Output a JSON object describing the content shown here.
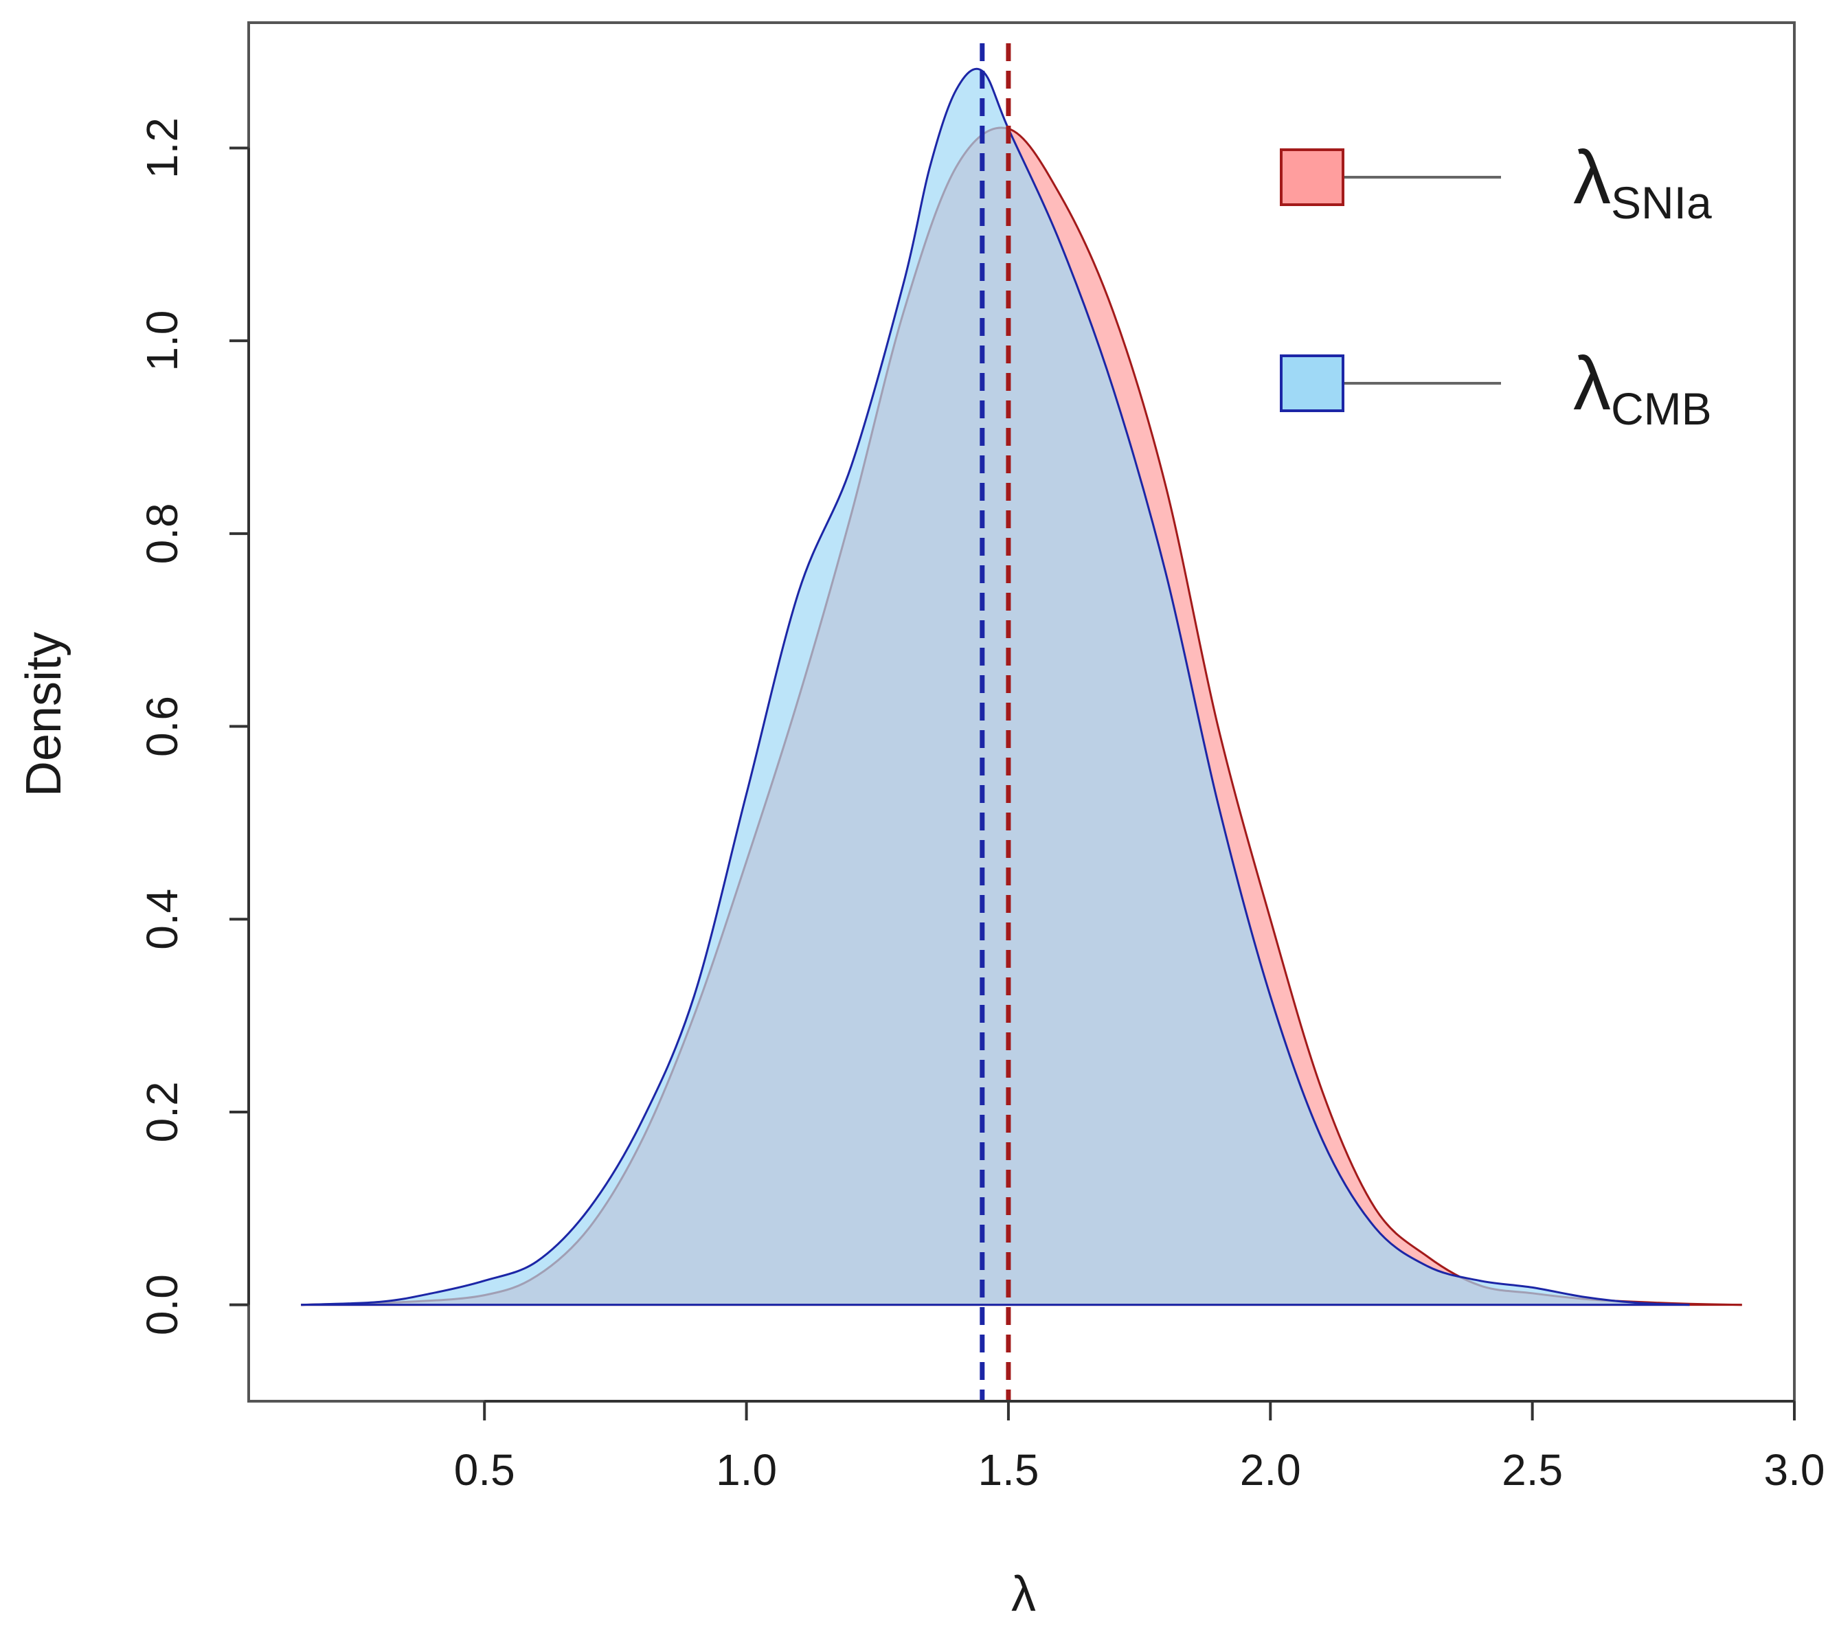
{
  "chart_data": {
    "type": "area",
    "title": "",
    "xlabel": "λ",
    "ylabel": "Density",
    "xlim": [
      0.05,
      3.0
    ],
    "ylim": [
      -0.1,
      1.33
    ],
    "xticks": [
      0.5,
      1.0,
      1.5,
      2.0,
      2.5,
      3.0
    ],
    "xtick_labels": [
      "0.5",
      "1.0",
      "1.5",
      "2.0",
      "2.5",
      "3.0"
    ],
    "yticks": [
      0.0,
      0.2,
      0.4,
      0.6,
      0.8,
      1.0,
      1.2
    ],
    "ytick_labels": [
      "0.0",
      "0.2",
      "0.4",
      "0.6",
      "0.8",
      "1.0",
      "1.2"
    ],
    "legend_position": "top-right",
    "series": [
      {
        "name": "SNIa",
        "label_main": "λ",
        "label_sub": "SNIa",
        "fill_color": "#ff9e9e",
        "line_color": "#a31a1a",
        "mean": 1.5,
        "x": [
          0.15,
          0.35,
          0.5,
          0.6,
          0.7,
          0.8,
          0.9,
          1.0,
          1.1,
          1.2,
          1.3,
          1.4,
          1.5,
          1.6,
          1.7,
          1.8,
          1.9,
          2.0,
          2.1,
          2.2,
          2.3,
          2.4,
          2.5,
          2.6,
          2.7,
          2.8,
          2.9
        ],
        "y": [
          0.0,
          0.003,
          0.01,
          0.03,
          0.08,
          0.17,
          0.3,
          0.46,
          0.63,
          0.82,
          1.03,
          1.18,
          1.22,
          1.15,
          1.03,
          0.85,
          0.6,
          0.4,
          0.22,
          0.1,
          0.05,
          0.02,
          0.012,
          0.006,
          0.003,
          0.001,
          0.0
        ]
      },
      {
        "name": "CMB",
        "label_main": "λ",
        "label_sub": "CMB",
        "fill_color": "#9fd9f6",
        "line_color": "#1c26a6",
        "mean": 1.45,
        "x": [
          0.15,
          0.3,
          0.4,
          0.5,
          0.6,
          0.7,
          0.8,
          0.9,
          1.0,
          1.1,
          1.2,
          1.3,
          1.35,
          1.4,
          1.45,
          1.5,
          1.6,
          1.7,
          1.8,
          1.9,
          2.0,
          2.1,
          2.2,
          2.3,
          2.4,
          2.5,
          2.6,
          2.7,
          2.8
        ],
        "y": [
          0.0,
          0.003,
          0.012,
          0.025,
          0.045,
          0.1,
          0.19,
          0.32,
          0.53,
          0.74,
          0.87,
          1.06,
          1.18,
          1.26,
          1.28,
          1.22,
          1.1,
          0.95,
          0.76,
          0.52,
          0.32,
          0.17,
          0.08,
          0.04,
          0.025,
          0.018,
          0.008,
          0.002,
          0.0
        ]
      }
    ]
  }
}
